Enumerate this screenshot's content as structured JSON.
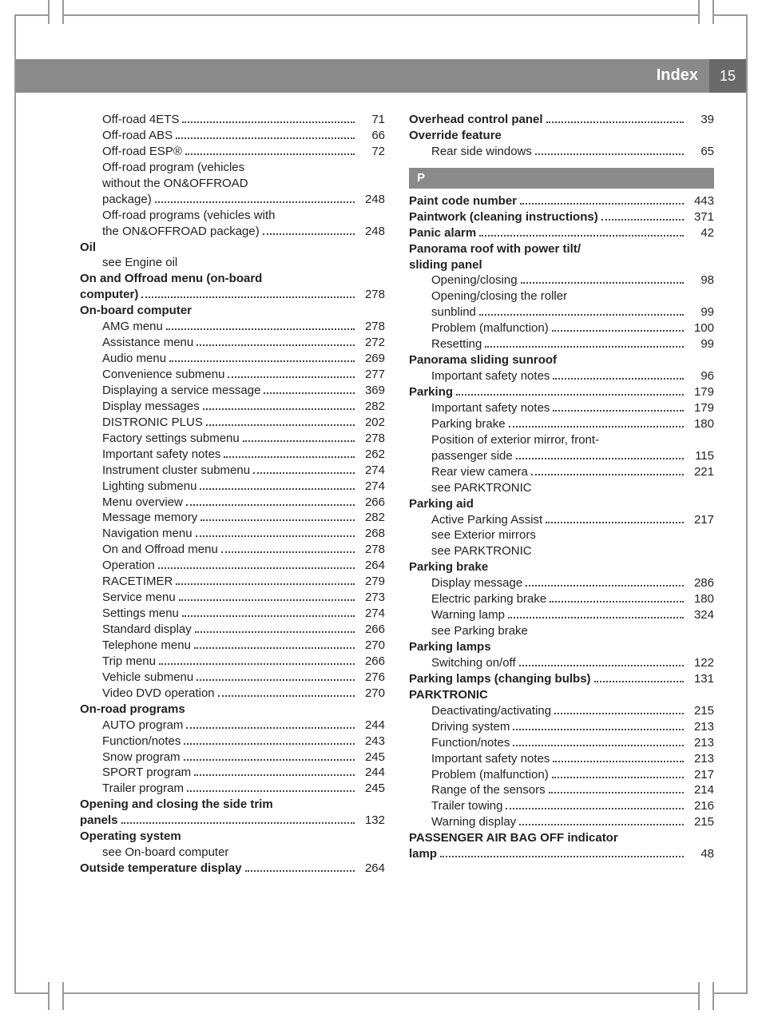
{
  "header": {
    "title": "Index",
    "page_number": "15"
  },
  "letter_bar": "P",
  "left_col": [
    {
      "type": "entry",
      "sub": true,
      "label": "Off-road 4ETS",
      "page": "71"
    },
    {
      "type": "entry",
      "sub": true,
      "label": "Off-road ABS",
      "page": "66"
    },
    {
      "type": "entry",
      "sub": true,
      "label": "Off-road ESP®",
      "page": "72"
    },
    {
      "type": "text",
      "sub": true,
      "label": "Off-road program (vehicles"
    },
    {
      "type": "text",
      "sub": true,
      "label": "without the ON&OFFROAD"
    },
    {
      "type": "entry",
      "sub": true,
      "label": "package)",
      "page": "248"
    },
    {
      "type": "text",
      "sub": true,
      "label": "Off-road programs (vehicles with"
    },
    {
      "type": "entry",
      "sub": true,
      "label": "the ON&OFFROAD package)",
      "page": "248"
    },
    {
      "type": "heading",
      "label": "Oil"
    },
    {
      "type": "text",
      "sub": true,
      "label": "see Engine oil"
    },
    {
      "type": "heading",
      "label": "On and Offroad menu (on-board"
    },
    {
      "type": "entry",
      "bold": true,
      "label": "computer)",
      "page": "278"
    },
    {
      "type": "heading",
      "label": "On-board computer"
    },
    {
      "type": "entry",
      "sub": true,
      "label": "AMG menu",
      "page": "278"
    },
    {
      "type": "entry",
      "sub": true,
      "label": "Assistance menu",
      "page": "272"
    },
    {
      "type": "entry",
      "sub": true,
      "label": "Audio menu",
      "page": "269"
    },
    {
      "type": "entry",
      "sub": true,
      "label": "Convenience submenu",
      "page": "277"
    },
    {
      "type": "entry",
      "sub": true,
      "label": "Displaying a service message",
      "page": "369"
    },
    {
      "type": "entry",
      "sub": true,
      "label": "Display messages",
      "page": "282"
    },
    {
      "type": "entry",
      "sub": true,
      "label": "DISTRONIC PLUS",
      "page": "202"
    },
    {
      "type": "entry",
      "sub": true,
      "label": "Factory settings submenu",
      "page": "278"
    },
    {
      "type": "entry",
      "sub": true,
      "label": "Important safety notes",
      "page": "262"
    },
    {
      "type": "entry",
      "sub": true,
      "label": "Instrument cluster submenu",
      "page": "274"
    },
    {
      "type": "entry",
      "sub": true,
      "label": "Lighting submenu",
      "page": "274"
    },
    {
      "type": "entry",
      "sub": true,
      "label": "Menu overview",
      "page": "266"
    },
    {
      "type": "entry",
      "sub": true,
      "label": "Message memory",
      "page": "282"
    },
    {
      "type": "entry",
      "sub": true,
      "label": "Navigation menu",
      "page": "268"
    },
    {
      "type": "entry",
      "sub": true,
      "label": "On and Offroad menu",
      "page": "278"
    },
    {
      "type": "entry",
      "sub": true,
      "label": "Operation",
      "page": "264"
    },
    {
      "type": "entry",
      "sub": true,
      "label": "RACETIMER",
      "page": "279"
    },
    {
      "type": "entry",
      "sub": true,
      "label": "Service menu",
      "page": "273"
    },
    {
      "type": "entry",
      "sub": true,
      "label": "Settings menu",
      "page": "274"
    },
    {
      "type": "entry",
      "sub": true,
      "label": "Standard display",
      "page": "266"
    },
    {
      "type": "entry",
      "sub": true,
      "label": "Telephone menu",
      "page": "270"
    },
    {
      "type": "entry",
      "sub": true,
      "label": "Trip menu",
      "page": "266"
    },
    {
      "type": "entry",
      "sub": true,
      "label": "Vehicle submenu",
      "page": "276"
    },
    {
      "type": "entry",
      "sub": true,
      "label": "Video DVD operation",
      "page": "270"
    },
    {
      "type": "heading",
      "label": "On-road programs"
    },
    {
      "type": "entry",
      "sub": true,
      "label": "AUTO program",
      "page": "244"
    },
    {
      "type": "entry",
      "sub": true,
      "label": "Function/notes",
      "page": "243"
    },
    {
      "type": "entry",
      "sub": true,
      "label": "Snow program",
      "page": "245"
    },
    {
      "type": "entry",
      "sub": true,
      "label": "SPORT program",
      "page": "244"
    },
    {
      "type": "entry",
      "sub": true,
      "label": "Trailer program",
      "page": "245"
    },
    {
      "type": "heading",
      "label": "Opening and closing the side trim"
    },
    {
      "type": "entry",
      "bold": true,
      "label": "panels",
      "page": "132"
    },
    {
      "type": "heading",
      "label": "Operating system"
    },
    {
      "type": "text",
      "sub": true,
      "label": "see On-board computer"
    },
    {
      "type": "entry",
      "bold": true,
      "label": "Outside temperature display",
      "page": "264"
    }
  ],
  "right_col": [
    {
      "type": "entry",
      "bold": true,
      "label": "Overhead control panel",
      "page": "39"
    },
    {
      "type": "heading",
      "label": "Override feature"
    },
    {
      "type": "entry",
      "sub": true,
      "label": "Rear side windows",
      "page": "65"
    },
    {
      "type": "letterbar"
    },
    {
      "type": "entry",
      "bold": true,
      "label": "Paint code number",
      "page": "443"
    },
    {
      "type": "entry",
      "bold": true,
      "label": "Paintwork (cleaning instructions)",
      "page": "371"
    },
    {
      "type": "entry",
      "bold": true,
      "label": "Panic alarm",
      "page": "42"
    },
    {
      "type": "heading",
      "label": "Panorama roof with power tilt/"
    },
    {
      "type": "heading",
      "label": "sliding panel"
    },
    {
      "type": "entry",
      "sub": true,
      "label": "Opening/closing",
      "page": "98"
    },
    {
      "type": "text",
      "sub": true,
      "label": "Opening/closing the roller"
    },
    {
      "type": "entry",
      "sub": true,
      "label": "sunblind",
      "page": "99"
    },
    {
      "type": "entry",
      "sub": true,
      "label": "Problem (malfunction)",
      "page": "100"
    },
    {
      "type": "entry",
      "sub": true,
      "label": "Resetting",
      "page": "99"
    },
    {
      "type": "heading",
      "label": "Panorama sliding sunroof"
    },
    {
      "type": "entry",
      "sub": true,
      "label": "Important safety notes",
      "page": "96"
    },
    {
      "type": "entry",
      "bold": true,
      "label": "Parking",
      "page": "179"
    },
    {
      "type": "entry",
      "sub": true,
      "label": "Important safety notes",
      "page": "179"
    },
    {
      "type": "entry",
      "sub": true,
      "label": "Parking brake",
      "page": "180"
    },
    {
      "type": "text",
      "sub": true,
      "label": "Position of exterior mirror, front-"
    },
    {
      "type": "entry",
      "sub": true,
      "label": "passenger side",
      "page": "115"
    },
    {
      "type": "entry",
      "sub": true,
      "label": "Rear view camera",
      "page": "221"
    },
    {
      "type": "text",
      "sub": true,
      "label": "see PARKTRONIC"
    },
    {
      "type": "heading",
      "label": "Parking aid"
    },
    {
      "type": "entry",
      "sub": true,
      "label": "Active Parking Assist",
      "page": "217"
    },
    {
      "type": "text",
      "sub": true,
      "label": "see Exterior mirrors"
    },
    {
      "type": "text",
      "sub": true,
      "label": "see PARKTRONIC"
    },
    {
      "type": "heading",
      "label": "Parking brake"
    },
    {
      "type": "entry",
      "sub": true,
      "label": "Display message",
      "page": "286"
    },
    {
      "type": "entry",
      "sub": true,
      "label": "Electric parking brake",
      "page": "180"
    },
    {
      "type": "entry",
      "sub": true,
      "label": "Warning lamp",
      "page": "324"
    },
    {
      "type": "text",
      "sub": true,
      "label": "see Parking brake"
    },
    {
      "type": "heading",
      "label": "Parking lamps"
    },
    {
      "type": "entry",
      "sub": true,
      "label": "Switching on/off",
      "page": "122"
    },
    {
      "type": "entry",
      "bold": true,
      "label": "Parking lamps (changing bulbs)",
      "page": "131"
    },
    {
      "type": "heading",
      "label": "PARKTRONIC"
    },
    {
      "type": "entry",
      "sub": true,
      "label": "Deactivating/activating",
      "page": "215"
    },
    {
      "type": "entry",
      "sub": true,
      "label": "Driving system",
      "page": "213"
    },
    {
      "type": "entry",
      "sub": true,
      "label": "Function/notes",
      "page": "213"
    },
    {
      "type": "entry",
      "sub": true,
      "label": "Important safety notes",
      "page": "213"
    },
    {
      "type": "entry",
      "sub": true,
      "label": "Problem (malfunction)",
      "page": "217"
    },
    {
      "type": "entry",
      "sub": true,
      "label": "Range of the sensors",
      "page": "214"
    },
    {
      "type": "entry",
      "sub": true,
      "label": "Trailer towing",
      "page": "216"
    },
    {
      "type": "entry",
      "sub": true,
      "label": "Warning display",
      "page": "215"
    },
    {
      "type": "heading",
      "label": "PASSENGER AIR BAG OFF indicator"
    },
    {
      "type": "entry",
      "bold": true,
      "label": "lamp",
      "page": "48"
    }
  ]
}
